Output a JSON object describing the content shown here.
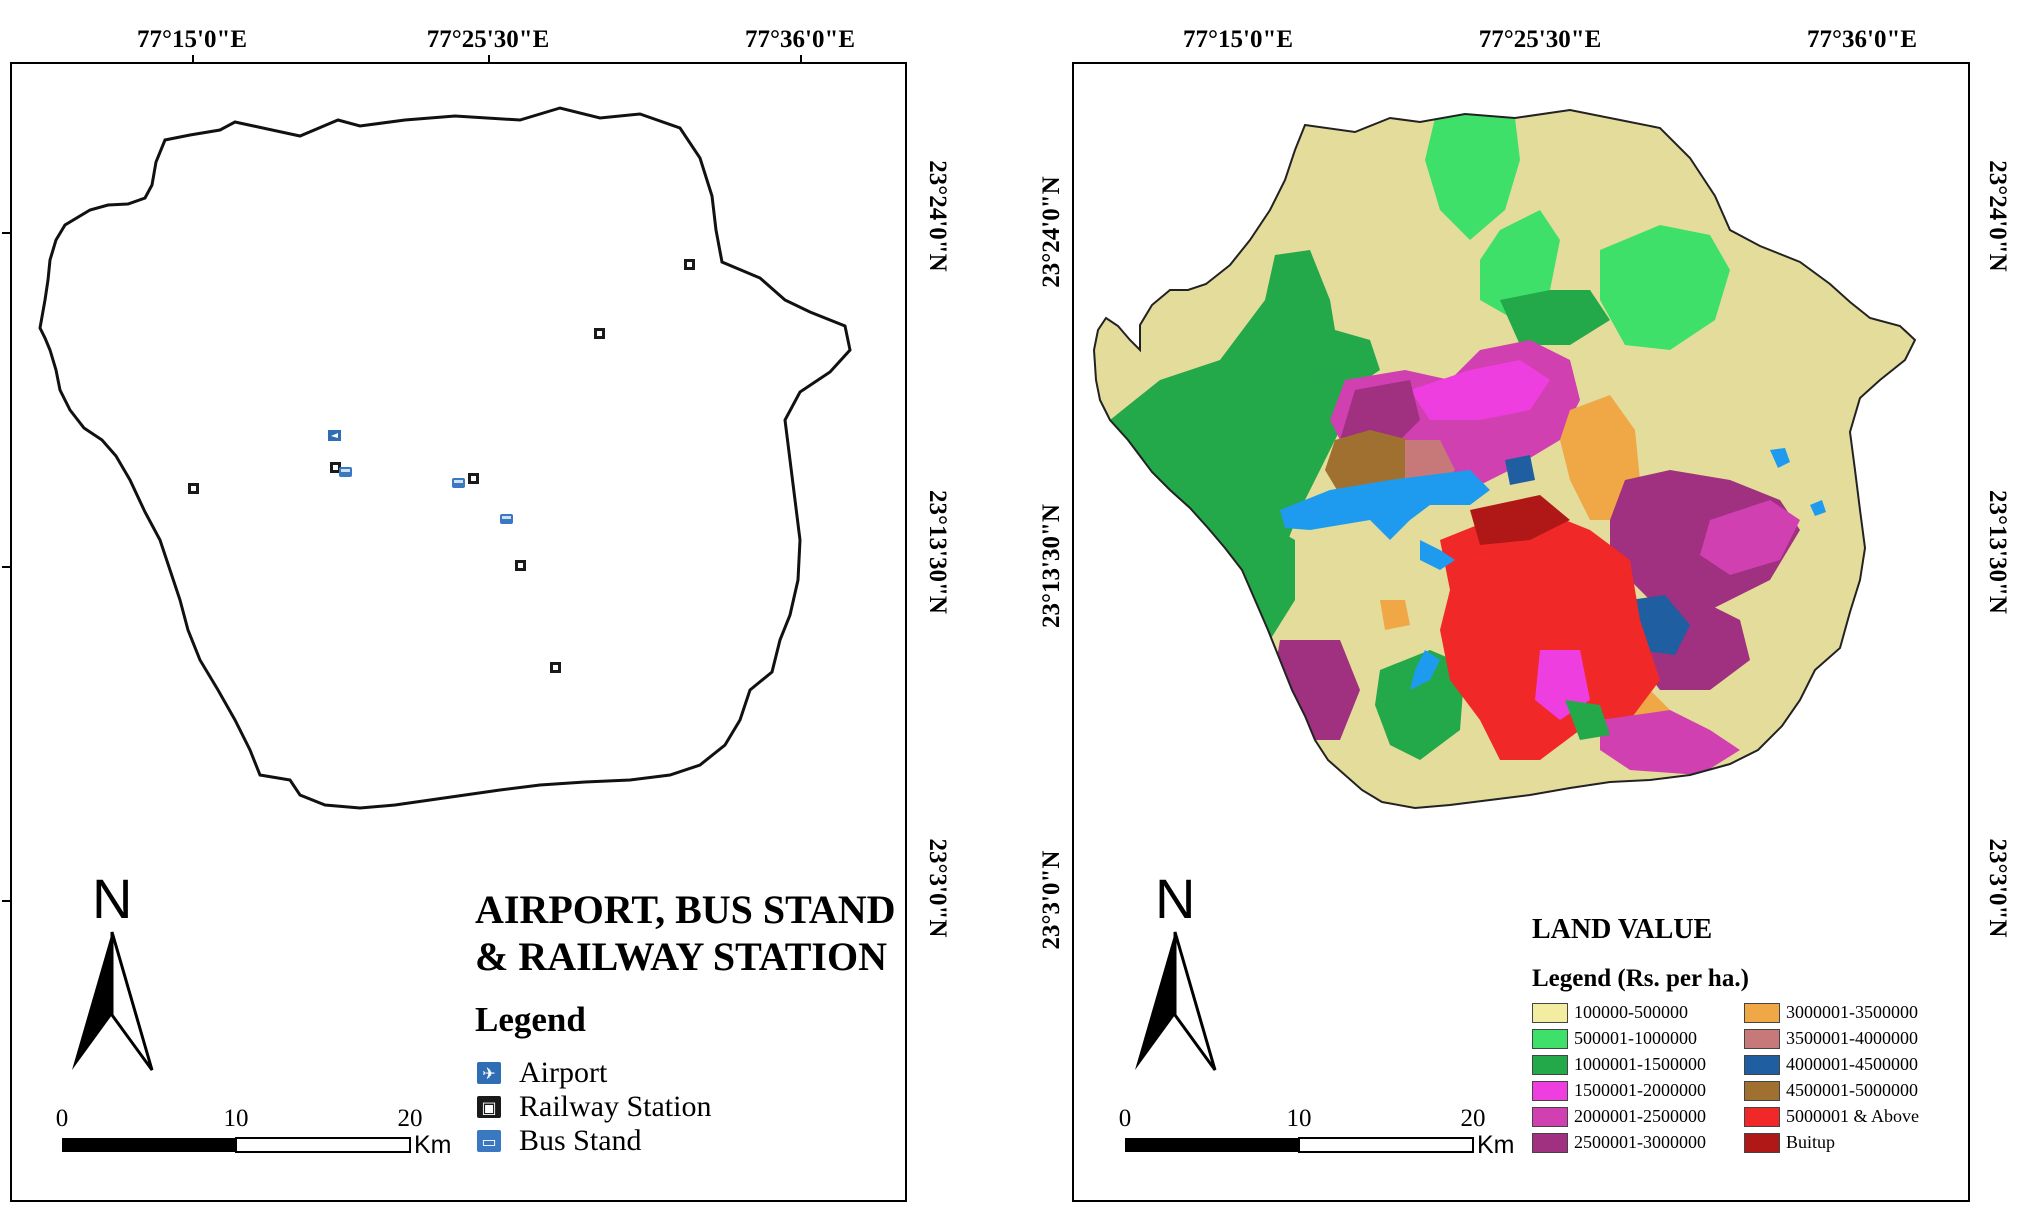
{
  "left_map": {
    "lon_labels": [
      "77°15'0\"E",
      "77°25'30\"E",
      "77°36'0\"E"
    ],
    "lat_labels": [
      "23°24'0\"N",
      "23°13'30\"N",
      "23°3'0\"N"
    ],
    "title_line1": "AIRPORT, BUS STAND",
    "title_line2": "& RAILWAY STATION",
    "legend_heading": "Legend",
    "legend_items": [
      {
        "label": "Airport",
        "icon": "airport-icon",
        "color": "#2f6db5"
      },
      {
        "label": "Railway Station",
        "icon": "railway-station-icon",
        "color": "#1a1a1a"
      },
      {
        "label": "Bus Stand",
        "icon": "bus-stand-icon",
        "color": "#3b78c2"
      }
    ],
    "north_label": "N",
    "scale_numbers": [
      "0",
      "10",
      "20"
    ],
    "scale_unit": "Km"
  },
  "right_map": {
    "lon_labels": [
      "77°15'0\"E",
      "77°25'30\"E",
      "77°36'0\"E"
    ],
    "lat_labels": [
      "23°24'0\"N",
      "23°13'30\"N",
      "23°3'0\"N"
    ],
    "title": "LAND VALUE",
    "legend_heading": "Legend (Rs. per ha.)",
    "legend_items": [
      {
        "label": "100000-500000",
        "color": "#f2eda0"
      },
      {
        "label": "3000001-3500000",
        "color": "#f0a846"
      },
      {
        "label": "500001-1000000",
        "color": "#3ee06a"
      },
      {
        "label": "3500001-4000000",
        "color": "#c77878"
      },
      {
        "label": "1000001-1500000",
        "color": "#23a84a"
      },
      {
        "label": "4000001-4500000",
        "color": "#1f5ea0"
      },
      {
        "label": "1500001-2000000",
        "color": "#ef3ee0"
      },
      {
        "label": "4500001-5000000",
        "color": "#a07030"
      },
      {
        "label": "2000001-2500000",
        "color": "#d040b0"
      },
      {
        "label": "5000001 & Above",
        "color": "#f02828"
      },
      {
        "label": "2500001-3000000",
        "color": "#a03080"
      },
      {
        "label": "Buitup",
        "color": "#b01818"
      }
    ],
    "north_label": "N",
    "scale_numbers": [
      "0",
      "10",
      "20"
    ],
    "scale_unit": "Km"
  }
}
